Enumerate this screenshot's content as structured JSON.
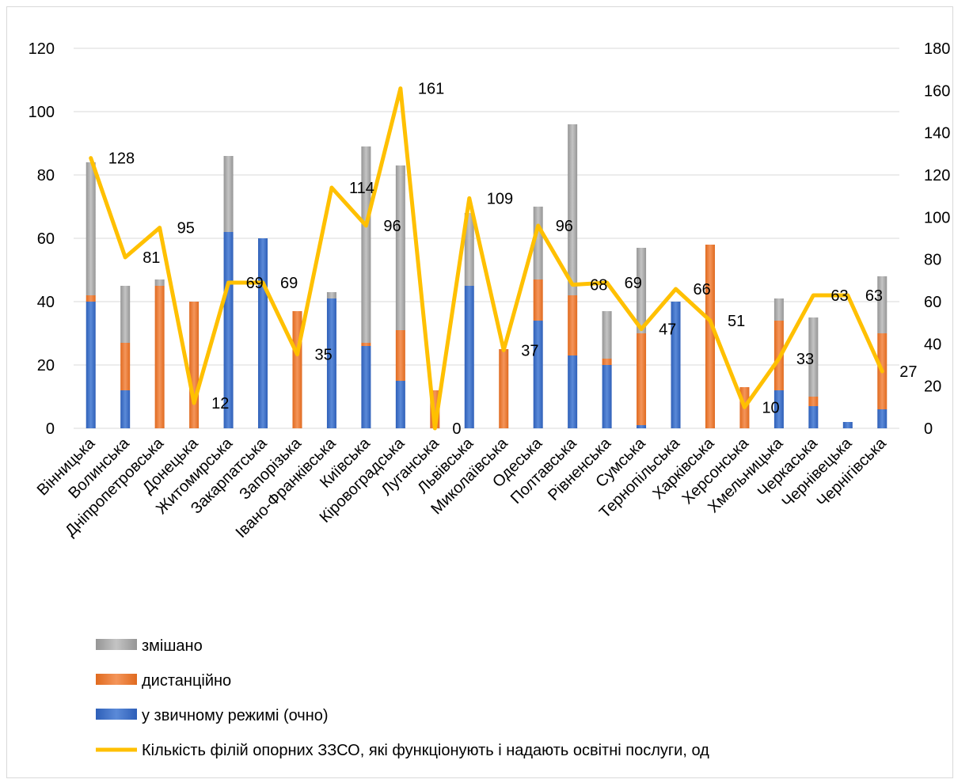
{
  "chart_data": {
    "type": "bar",
    "stacked": true,
    "categories": [
      "Вінницька",
      "Волинська",
      "Дніпропетровська",
      "Донецька",
      "Житомирська",
      "Закарпатська",
      "Запорізька",
      "Івано-Франківська",
      "Київська",
      "Кіровоградська",
      "Луганська",
      "Львівська",
      "Миколаївська",
      "Одеська",
      "Полтавська",
      "Рівненська",
      "Сумська",
      "Тернопільська",
      "Харківська",
      "Херсонська",
      "Хмельницька",
      "Черкаська",
      "Чернівецька",
      "Чернігівська"
    ],
    "series": [
      {
        "name": "у звичному режимі (очно)",
        "kind": "bar",
        "axis": "left",
        "color": "#4472c4",
        "values": [
          40,
          12,
          0,
          0,
          62,
          60,
          0,
          41,
          26,
          15,
          0,
          45,
          0,
          34,
          23,
          20,
          1,
          40,
          0,
          0,
          12,
          7,
          2,
          6
        ]
      },
      {
        "name": "дистанційно",
        "kind": "bar",
        "axis": "left",
        "color": "#ed7d31",
        "values": [
          2,
          15,
          45,
          40,
          0,
          0,
          37,
          0,
          1,
          16,
          12,
          0,
          25,
          13,
          19,
          2,
          29,
          0,
          58,
          13,
          22,
          3,
          0,
          24
        ]
      },
      {
        "name": "змішано",
        "kind": "bar",
        "axis": "left",
        "color": "#a5a5a5",
        "values": [
          42,
          18,
          2,
          0,
          24,
          0,
          0,
          2,
          62,
          52,
          0,
          23,
          0,
          23,
          54,
          15,
          27,
          0,
          0,
          0,
          7,
          25,
          0,
          18
        ]
      },
      {
        "name": "Кількість філій опорних ЗЗСО, які функціонують і надають освітні послуги, од",
        "kind": "line",
        "axis": "right",
        "color": "#ffc000",
        "values": [
          128,
          81,
          95,
          12,
          69,
          69,
          35,
          114,
          96,
          161,
          0,
          109,
          37,
          96,
          68,
          69,
          47,
          66,
          51,
          10,
          33,
          63,
          63,
          27
        ],
        "labels": [
          "128",
          "81",
          "95",
          "12",
          "69",
          "69",
          "35",
          "114",
          "96",
          "161",
          "0",
          "109",
          "37",
          "96",
          "68",
          "69",
          "47",
          "66",
          "51",
          "10",
          "33",
          "63",
          "63",
          "27"
        ]
      }
    ],
    "y_left": {
      "min": 0,
      "max": 120,
      "ticks": [
        "0",
        "20",
        "40",
        "60",
        "80",
        "100",
        "120"
      ]
    },
    "y_right": {
      "min": 0,
      "max": 180,
      "ticks": [
        "0",
        "20",
        "40",
        "60",
        "80",
        "100",
        "120",
        "140",
        "160",
        "180"
      ]
    },
    "grid": true,
    "legend_position": "bottom-left",
    "legend_order": [
      "змішано",
      "дистанційно",
      "у звичному режимі (очно)",
      "Кількість філій опорних ЗЗСО, які функціонують і надають освітні послуги, од"
    ],
    "title": "",
    "xlabel": "",
    "ylabel": ""
  }
}
